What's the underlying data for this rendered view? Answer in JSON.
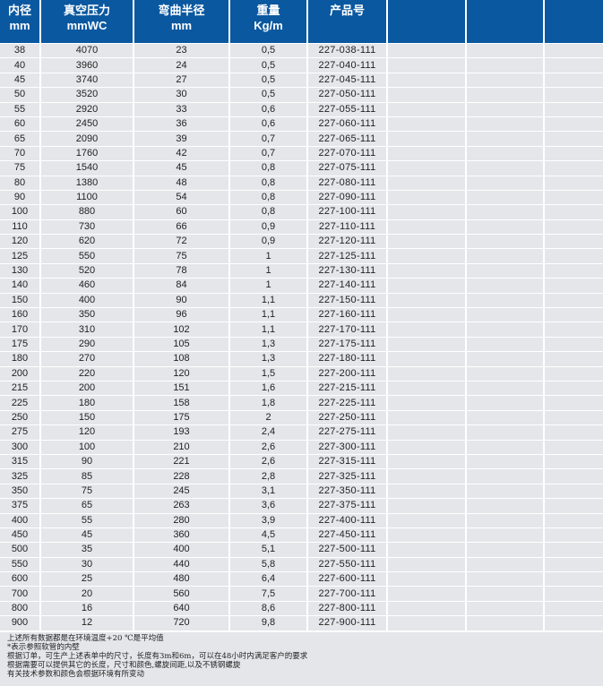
{
  "header": [
    {
      "line1": "内径",
      "line2": "mm"
    },
    {
      "line1": "真空压力",
      "line2": "mmWC"
    },
    {
      "line1": "弯曲半径",
      "line2": "mm"
    },
    {
      "line1": "重量",
      "line2": "Kg/m"
    },
    {
      "line1": "产品号",
      "line2": ""
    },
    {
      "line1": "",
      "line2": ""
    },
    {
      "line1": "",
      "line2": ""
    },
    {
      "line1": "",
      "line2": ""
    }
  ],
  "rows": [
    [
      "38",
      "4070",
      "23",
      "0,5",
      "227-038-111"
    ],
    [
      "40",
      "3960",
      "24",
      "0,5",
      "227-040-111"
    ],
    [
      "45",
      "3740",
      "27",
      "0,5",
      "227-045-111"
    ],
    [
      "50",
      "3520",
      "30",
      "0,5",
      "227-050-111"
    ],
    [
      "55",
      "2920",
      "33",
      "0,6",
      "227-055-111"
    ],
    [
      "60",
      "2450",
      "36",
      "0,6",
      "227-060-111"
    ],
    [
      "65",
      "2090",
      "39",
      "0,7",
      "227-065-111"
    ],
    [
      "70",
      "1760",
      "42",
      "0,7",
      "227-070-111"
    ],
    [
      "75",
      "1540",
      "45",
      "0,8",
      "227-075-111"
    ],
    [
      "80",
      "1380",
      "48",
      "0,8",
      "227-080-111"
    ],
    [
      "90",
      "1100",
      "54",
      "0,8",
      "227-090-111"
    ],
    [
      "100",
      "880",
      "60",
      "0,8",
      "227-100-111"
    ],
    [
      "110",
      "730",
      "66",
      "0,9",
      "227-110-111"
    ],
    [
      "120",
      "620",
      "72",
      "0,9",
      "227-120-111"
    ],
    [
      "125",
      "550",
      "75",
      "1",
      "227-125-111"
    ],
    [
      "130",
      "520",
      "78",
      "1",
      "227-130-111"
    ],
    [
      "140",
      "460",
      "84",
      "1",
      "227-140-111"
    ],
    [
      "150",
      "400",
      "90",
      "1,1",
      "227-150-111"
    ],
    [
      "160",
      "350",
      "96",
      "1,1",
      "227-160-111"
    ],
    [
      "170",
      "310",
      "102",
      "1,1",
      "227-170-111"
    ],
    [
      "175",
      "290",
      "105",
      "1,3",
      "227-175-111"
    ],
    [
      "180",
      "270",
      "108",
      "1,3",
      "227-180-111"
    ],
    [
      "200",
      "220",
      "120",
      "1,5",
      "227-200-111"
    ],
    [
      "215",
      "200",
      "151",
      "1,6",
      "227-215-111"
    ],
    [
      "225",
      "180",
      "158",
      "1,8",
      "227-225-111"
    ],
    [
      "250",
      "150",
      "175",
      "2",
      "227-250-111"
    ],
    [
      "275",
      "120",
      "193",
      "2,4",
      "227-275-111"
    ],
    [
      "300",
      "100",
      "210",
      "2,6",
      "227-300-111"
    ],
    [
      "315",
      "90",
      "221",
      "2,6",
      "227-315-111"
    ],
    [
      "325",
      "85",
      "228",
      "2,8",
      "227-325-111"
    ],
    [
      "350",
      "75",
      "245",
      "3,1",
      "227-350-111"
    ],
    [
      "375",
      "65",
      "263",
      "3,6",
      "227-375-111"
    ],
    [
      "400",
      "55",
      "280",
      "3,9",
      "227-400-111"
    ],
    [
      "450",
      "45",
      "360",
      "4,5",
      "227-450-111"
    ],
    [
      "500",
      "35",
      "400",
      "5,1",
      "227-500-111"
    ],
    [
      "550",
      "30",
      "440",
      "5,8",
      "227-550-111"
    ],
    [
      "600",
      "25",
      "480",
      "6,4",
      "227-600-111"
    ],
    [
      "700",
      "20",
      "560",
      "7,5",
      "227-700-111"
    ],
    [
      "800",
      "16",
      "640",
      "8,6",
      "227-800-111"
    ],
    [
      "900",
      "12",
      "720",
      "9,8",
      "227-900-111"
    ]
  ],
  "notes": [
    "上述所有数据都是在环境温度+20 ℃是平均值",
    "*表示参照软管的内壁",
    "根据订单，可生产上述表单中的尺寸，长度有3m和6m，可以在48小时内满足客户的要求",
    "根据需要可以提供其它的长度，尺寸和颜色,螺旋间距,以及不锈钢螺旋",
    "有关技术参数和颜色会根据环境有所变动"
  ],
  "colors": {
    "header_bg": "#0a58a0",
    "row_bg": "#e4e6e9"
  }
}
